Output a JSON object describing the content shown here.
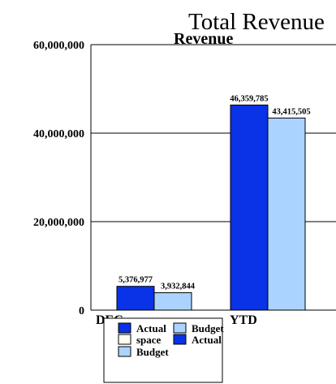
{
  "chart_data": {
    "type": "bar",
    "title": "Total Revenue",
    "subtitle": "Revenue",
    "xlabel": "",
    "ylabel": "",
    "categories": [
      "DEC",
      "YTD"
    ],
    "ylim": [
      0,
      60000000
    ],
    "yticks": [
      0,
      20000000,
      40000000,
      60000000
    ],
    "ytick_labels": [
      "0",
      "20,000,000",
      "40,000,000",
      "60,000,000"
    ],
    "grid": true,
    "series": [
      {
        "name": "Actual",
        "color": "#0a32e6",
        "values": [
          5376977,
          46359785
        ],
        "labels": [
          "5,376,977",
          "46,359,785"
        ]
      },
      {
        "name": "Budget",
        "color": "#aad4ff",
        "values": [
          3932844,
          43415505
        ],
        "labels": [
          "3,932,844",
          "43,415,505"
        ]
      }
    ],
    "legend": {
      "placement": "bottom-center",
      "entries": [
        {
          "label": "Actual",
          "color": "#0a32e6"
        },
        {
          "label": "Budget",
          "color": "#aad4ff"
        },
        {
          "label": "space",
          "color": "#fffff0"
        },
        {
          "label": "Actual",
          "color": "#0a32e6"
        },
        {
          "label": "Budget",
          "color": "#aad4ff"
        }
      ]
    }
  }
}
